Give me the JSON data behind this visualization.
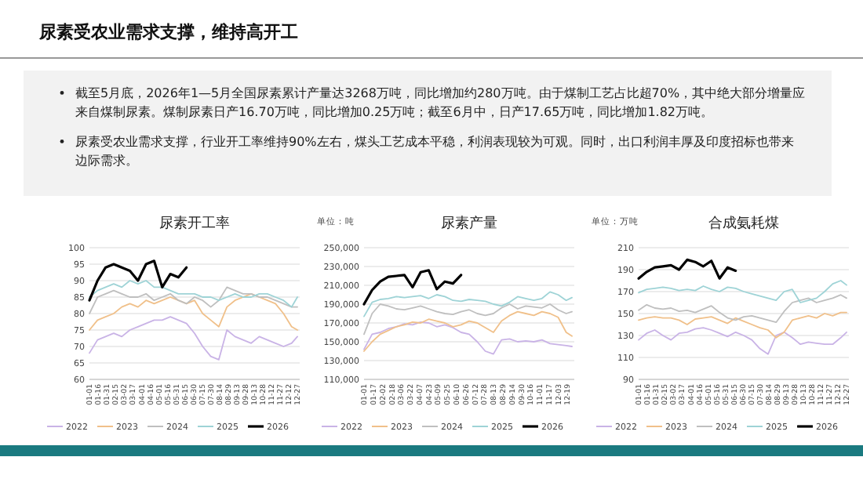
{
  "chart_data": [
    {
      "type": "other",
      "title": "尿素受农业需求支撑，维持高开工",
      "annotations": [
        "截至5月底，2026年1—5月全国尿素累计产量达3268万吨，同比增加约280万吨。由于煤制工艺占比超70%，其中绝大部分增量应来自煤制尿素。煤制尿素日产16.70万吨，同比增加0.25万吨；截至6月中，日产17.65万吨，同比增加1.82万吨。",
        "尿素受农业需求支撑，行业开工率维持90%左右，煤头工艺成本平稳，利润表现较为可观。同时，出口利润丰厚及印度招标也带来边际需求。"
      ]
    },
    {
      "type": "line",
      "title": "尿素开工率",
      "grid": "y",
      "legend": "bottom",
      "x": [
        "--01-01",
        "--01-15",
        "--01-29",
        "--02-12",
        "--02-26",
        "--03-12",
        "--03-26",
        "--04-09",
        "--04-23",
        "--05-07",
        "--05-21",
        "--06-04",
        "--06-18",
        "--07-02",
        "--07-16",
        "--07-30",
        "--08-13",
        "--08-27",
        "--09-10",
        "--09-24",
        "--10-08",
        "--10-22",
        "--11-05",
        "--11-19",
        "--12-03",
        "--12-17",
        "--12-27"
      ],
      "xlim": [
        "--01-01",
        "--12-31"
      ],
      "xticks": [
        {
          "value": "--01-01",
          "label": "01-01"
        },
        {
          "value": "--01-16",
          "label": "01-16"
        },
        {
          "value": "--01-31",
          "label": "01-31"
        },
        {
          "value": "--02-15",
          "label": "02-15"
        },
        {
          "value": "--03-02",
          "label": "03-02"
        },
        {
          "value": "--03-17",
          "label": "03-17"
        },
        {
          "value": "--04-01",
          "label": "04-01"
        },
        {
          "value": "--04-16",
          "label": "04-16"
        },
        {
          "value": "--05-01",
          "label": "05-01"
        },
        {
          "value": "--05-16",
          "label": "05-16"
        },
        {
          "value": "--05-31",
          "label": "05-31"
        },
        {
          "value": "--06-15",
          "label": "06-15"
        },
        {
          "value": "--06-30",
          "label": "06-30"
        },
        {
          "value": "--07-15",
          "label": "07-15"
        },
        {
          "value": "--07-30",
          "label": "07-30"
        },
        {
          "value": "--08-14",
          "label": "08-14"
        },
        {
          "value": "--08-29",
          "label": "08-29"
        },
        {
          "value": "--09-13",
          "label": "09-13"
        },
        {
          "value": "--09-28",
          "label": "09-28"
        },
        {
          "value": "--10-13",
          "label": "10-13"
        },
        {
          "value": "--10-28",
          "label": "10-28"
        },
        {
          "value": "--11-12",
          "label": "11-12"
        },
        {
          "value": "--11-27",
          "label": "11-27"
        },
        {
          "value": "--12-12",
          "label": "12-12"
        },
        {
          "value": "--12-27",
          "label": "12-27"
        }
      ],
      "ylim": [
        60,
        100
      ],
      "yticks": [
        60,
        65,
        70,
        75,
        80,
        85,
        90,
        95,
        100
      ],
      "series": [
        {
          "name": "2022",
          "color": "#c9b3e6",
          "values": [
            68,
            72,
            73,
            74,
            73,
            75,
            76,
            77,
            78,
            78,
            79,
            78,
            77,
            74,
            70,
            67,
            66,
            75,
            73,
            72,
            71,
            73,
            72,
            71,
            70,
            71,
            73
          ]
        },
        {
          "name": "2023",
          "color": "#f0c08a",
          "values": [
            75,
            78,
            79,
            80,
            82,
            83,
            82,
            84,
            83,
            84,
            85,
            84,
            83,
            84,
            80,
            78,
            76,
            82,
            84,
            85,
            86,
            85,
            84,
            83,
            80,
            76,
            75
          ]
        },
        {
          "name": "2024",
          "color": "#bfbfbf",
          "values": [
            80,
            85,
            86,
            87,
            86,
            85,
            85,
            86,
            84,
            85,
            86,
            84,
            83,
            85,
            84,
            82,
            84,
            88,
            87,
            86,
            86,
            85,
            85,
            84,
            83,
            82,
            82
          ]
        },
        {
          "name": "2025",
          "color": "#9ed3d6",
          "values": [
            85,
            87,
            88,
            89,
            88,
            90,
            89,
            90,
            88,
            88,
            87,
            86,
            86,
            86,
            85,
            85,
            84,
            85,
            86,
            85,
            85,
            86,
            86,
            85,
            84,
            82,
            85
          ]
        },
        {
          "name": "2026",
          "color": "#000000",
          "values": [
            84,
            90,
            94,
            95,
            94,
            93,
            90,
            95,
            96,
            88,
            92,
            91,
            94,
            null,
            null,
            null,
            null,
            null,
            null,
            null,
            null,
            null,
            null,
            null,
            null,
            null,
            null
          ]
        }
      ]
    },
    {
      "type": "line",
      "title": "尿素产量",
      "ylabel": "单位：吨",
      "grid": "y",
      "legend": "bottom",
      "x": [
        "--01-01",
        "--01-15",
        "--01-29",
        "--02-12",
        "--02-26",
        "--03-12",
        "--03-26",
        "--04-09",
        "--04-23",
        "--05-07",
        "--05-21",
        "--06-04",
        "--06-18",
        "--07-02",
        "--07-16",
        "--07-30",
        "--08-13",
        "--08-27",
        "--09-10",
        "--09-24",
        "--10-08",
        "--10-22",
        "--11-05",
        "--11-19",
        "--12-03",
        "--12-17",
        "--12-27"
      ],
      "xlim": [
        "--01-01",
        "--12-31"
      ],
      "xticks": [
        {
          "value": "--01-01",
          "label": "01-01"
        },
        {
          "value": "--01-17",
          "label": "01-17"
        },
        {
          "value": "--02-02",
          "label": "02-02"
        },
        {
          "value": "--02-18",
          "label": "02-18"
        },
        {
          "value": "--03-06",
          "label": "03-06"
        },
        {
          "value": "--03-22",
          "label": "03-22"
        },
        {
          "value": "--04-07",
          "label": "04-07"
        },
        {
          "value": "--04-23",
          "label": "04-23"
        },
        {
          "value": "--05-09",
          "label": "05-09"
        },
        {
          "value": "--05-25",
          "label": "05-25"
        },
        {
          "value": "--06-10",
          "label": "06-10"
        },
        {
          "value": "--06-26",
          "label": "06-26"
        },
        {
          "value": "--07-12",
          "label": "07-12"
        },
        {
          "value": "--07-28",
          "label": "07-28"
        },
        {
          "value": "--08-13",
          "label": "08-13"
        },
        {
          "value": "--08-29",
          "label": "08-29"
        },
        {
          "value": "--09-14",
          "label": "09-14"
        },
        {
          "value": "--09-30",
          "label": "09-30"
        },
        {
          "value": "--10-16",
          "label": "10-16"
        },
        {
          "value": "--11-01",
          "label": "11-01"
        },
        {
          "value": "--11-17",
          "label": "11-17"
        },
        {
          "value": "--12-03",
          "label": "12-03"
        },
        {
          "value": "--12-19",
          "label": "12-19"
        }
      ],
      "ylim": [
        110000,
        250000
      ],
      "yticks": [
        {
          "value": 110000,
          "label": "110,000"
        },
        {
          "value": 130000,
          "label": "130,000"
        },
        {
          "value": 150000,
          "label": "150,000"
        },
        {
          "value": 170000,
          "label": "170,000"
        },
        {
          "value": 190000,
          "label": "190,000"
        },
        {
          "value": 210000,
          "label": "210,000"
        },
        {
          "value": 230000,
          "label": "230,000"
        },
        {
          "value": 250000,
          "label": "250,000"
        }
      ],
      "series": [
        {
          "name": "2022",
          "color": "#c9b3e6",
          "values": [
            142000,
            158000,
            160000,
            164000,
            166000,
            169000,
            168000,
            171000,
            170000,
            166000,
            168000,
            165000,
            160000,
            158000,
            150000,
            140000,
            137000,
            152000,
            153000,
            150000,
            151000,
            150000,
            152000,
            148000,
            147000,
            146000,
            145000
          ]
        },
        {
          "name": "2023",
          "color": "#f0c08a",
          "values": [
            140000,
            150000,
            158000,
            162000,
            166000,
            168000,
            171000,
            170000,
            174000,
            172000,
            170000,
            166000,
            168000,
            172000,
            170000,
            165000,
            160000,
            172000,
            178000,
            182000,
            180000,
            178000,
            182000,
            180000,
            176000,
            160000,
            156000
          ]
        },
        {
          "name": "2024",
          "color": "#bfbfbf",
          "values": [
            158000,
            180000,
            190000,
            188000,
            185000,
            184000,
            186000,
            188000,
            185000,
            182000,
            180000,
            179000,
            182000,
            184000,
            180000,
            178000,
            180000,
            186000,
            190000,
            185000,
            188000,
            187000,
            186000,
            190000,
            184000,
            180000,
            182000
          ]
        },
        {
          "name": "2025",
          "color": "#9ed3d6",
          "values": [
            177000,
            192000,
            195000,
            196000,
            198000,
            197000,
            198000,
            199000,
            196000,
            200000,
            198000,
            194000,
            193000,
            195000,
            194000,
            193000,
            190000,
            188000,
            192000,
            198000,
            196000,
            194000,
            196000,
            203000,
            200000,
            194000,
            197000
          ]
        },
        {
          "name": "2026",
          "color": "#000000",
          "values": [
            190000,
            205000,
            214000,
            219000,
            220000,
            221000,
            208000,
            224000,
            226000,
            206000,
            214000,
            212000,
            221000,
            null,
            null,
            null,
            null,
            null,
            null,
            null,
            null,
            null,
            null,
            null,
            null,
            null,
            null
          ]
        }
      ]
    },
    {
      "type": "line",
      "title": "合成氨耗煤",
      "ylabel": "单位：万吨",
      "grid": "y",
      "legend": "bottom",
      "x": [
        "--01-01",
        "--01-15",
        "--01-29",
        "--02-12",
        "--02-26",
        "--03-12",
        "--03-26",
        "--04-09",
        "--04-23",
        "--05-07",
        "--05-21",
        "--06-04",
        "--06-18",
        "--07-02",
        "--07-16",
        "--07-30",
        "--08-13",
        "--08-27",
        "--09-10",
        "--09-24",
        "--10-08",
        "--10-22",
        "--11-05",
        "--11-19",
        "--12-03",
        "--12-17",
        "--12-27"
      ],
      "xlim": [
        "--01-01",
        "--12-31"
      ],
      "xticks": [
        {
          "value": "--01-01",
          "label": "01-01"
        },
        {
          "value": "--01-16",
          "label": "01-16"
        },
        {
          "value": "--01-31",
          "label": "01-31"
        },
        {
          "value": "--02-15",
          "label": "02-15"
        },
        {
          "value": "--03-02",
          "label": "03-02"
        },
        {
          "value": "--03-17",
          "label": "03-17"
        },
        {
          "value": "--04-01",
          "label": "04-01"
        },
        {
          "value": "--04-16",
          "label": "04-16"
        },
        {
          "value": "--05-01",
          "label": "05-01"
        },
        {
          "value": "--05-16",
          "label": "05-16"
        },
        {
          "value": "--05-31",
          "label": "05-31"
        },
        {
          "value": "--06-15",
          "label": "06-15"
        },
        {
          "value": "--06-30",
          "label": "06-30"
        },
        {
          "value": "--07-15",
          "label": "07-15"
        },
        {
          "value": "--07-30",
          "label": "07-30"
        },
        {
          "value": "--08-14",
          "label": "08-14"
        },
        {
          "value": "--08-29",
          "label": "08-29"
        },
        {
          "value": "--09-13",
          "label": "09-13"
        },
        {
          "value": "--09-28",
          "label": "09-28"
        },
        {
          "value": "--10-13",
          "label": "10-13"
        },
        {
          "value": "--10-28",
          "label": "10-28"
        },
        {
          "value": "--11-12",
          "label": "11-12"
        },
        {
          "value": "--11-27",
          "label": "11-27"
        },
        {
          "value": "--12-12",
          "label": "12-12"
        },
        {
          "value": "--12-27",
          "label": "12-27"
        }
      ],
      "ylim": [
        90,
        210
      ],
      "yticks": [
        90,
        110,
        130,
        150,
        170,
        190,
        210
      ],
      "series": [
        {
          "name": "2022",
          "color": "#c9b3e6",
          "values": [
            126,
            132,
            135,
            130,
            126,
            132,
            133,
            136,
            137,
            135,
            132,
            129,
            133,
            130,
            126,
            118,
            113,
            130,
            133,
            128,
            122,
            124,
            123,
            122,
            122,
            128,
            133
          ]
        },
        {
          "name": "2023",
          "color": "#f0c08a",
          "values": [
            144,
            146,
            147,
            146,
            146,
            144,
            140,
            145,
            146,
            147,
            144,
            141,
            146,
            143,
            140,
            137,
            135,
            128,
            133,
            144,
            146,
            148,
            146,
            150,
            148,
            151,
            151
          ]
        },
        {
          "name": "2024",
          "color": "#bfbfbf",
          "values": [
            153,
            158,
            155,
            154,
            155,
            152,
            153,
            151,
            154,
            157,
            151,
            146,
            144,
            147,
            148,
            146,
            144,
            142,
            152,
            160,
            162,
            164,
            160,
            162,
            164,
            167,
            164
          ]
        },
        {
          "name": "2025",
          "color": "#9ed3d6",
          "values": [
            169,
            172,
            173,
            174,
            173,
            171,
            172,
            171,
            175,
            172,
            170,
            174,
            173,
            170,
            168,
            166,
            164,
            162,
            170,
            172,
            160,
            162,
            164,
            170,
            177,
            180,
            176
          ]
        },
        {
          "name": "2026",
          "color": "#000000",
          "values": [
            182,
            188,
            192,
            193,
            194,
            190,
            199,
            197,
            193,
            198,
            182,
            192,
            189,
            null,
            null,
            null,
            null,
            null,
            null,
            null,
            null,
            null,
            null,
            null,
            null,
            null,
            null
          ]
        }
      ]
    }
  ]
}
